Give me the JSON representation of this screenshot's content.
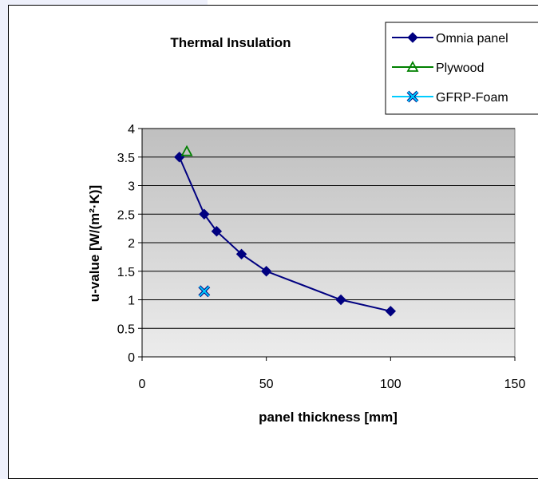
{
  "chart_data": {
    "type": "line",
    "title": "Thermal Insulation",
    "xlabel": "panel thickness [mm]",
    "ylabel": "u-value [W/(m²·K)]",
    "xlim": [
      0,
      150
    ],
    "ylim": [
      0,
      4
    ],
    "xticks": [
      0,
      50,
      100,
      150
    ],
    "yticks": [
      0,
      0.5,
      1,
      1.5,
      2,
      2.5,
      3,
      3.5,
      4
    ],
    "grid": "horizontal",
    "legend_position": "top-right",
    "series": [
      {
        "name": "Omnia panel",
        "color": "#000080",
        "marker": "diamond",
        "line": true,
        "points": [
          [
            15,
            3.5
          ],
          [
            25,
            2.5
          ],
          [
            30,
            2.2
          ],
          [
            40,
            1.8
          ],
          [
            50,
            1.5
          ],
          [
            80,
            1.0
          ],
          [
            100,
            0.8
          ]
        ]
      },
      {
        "name": "Plywood",
        "color": "#008000",
        "marker": "triangle",
        "line": false,
        "points": [
          [
            18,
            3.6
          ]
        ]
      },
      {
        "name": "GFRP-Foam",
        "color": "#00ccff",
        "marker": "x",
        "line": false,
        "points": [
          [
            25,
            1.15
          ]
        ]
      }
    ]
  }
}
